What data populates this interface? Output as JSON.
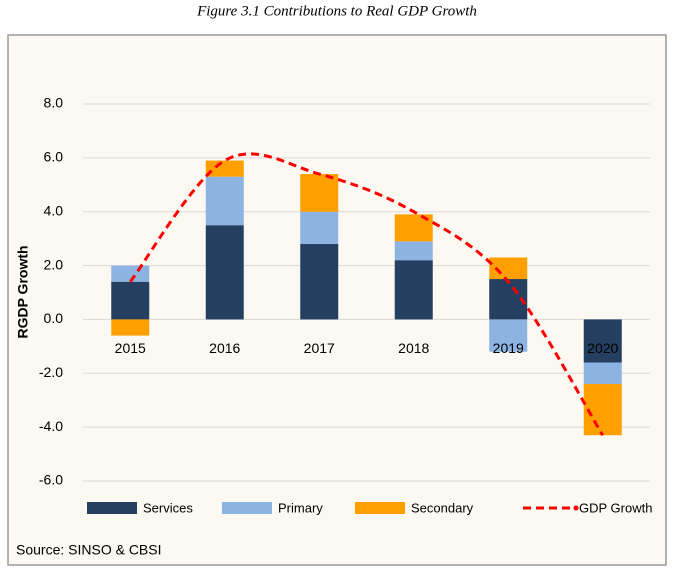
{
  "chart_data": {
    "type": "bar",
    "title": "Figure 3.1 Contributions to Real GDP Growth",
    "y_label": "RGDP Growth",
    "source": "Source: SINSO & CBSI",
    "categories": [
      "2015",
      "2016",
      "2017",
      "2018",
      "2019",
      "2020"
    ],
    "series": [
      {
        "name": "Services",
        "color": "#243f60",
        "values": [
          1.4,
          3.5,
          2.8,
          2.2,
          1.5,
          -1.6
        ]
      },
      {
        "name": "Primary",
        "color": "#8db3e2",
        "values": [
          0.6,
          1.8,
          1.2,
          0.7,
          -1.2,
          -0.8
        ]
      },
      {
        "name": "Secondary",
        "color": "#ffa000",
        "values": [
          -0.6,
          0.6,
          1.4,
          1.0,
          0.8,
          -1.9
        ]
      },
      {
        "name": "GDP Growth",
        "color": "#ff0000",
        "type": "line",
        "values": [
          1.4,
          5.9,
          5.4,
          4.0,
          1.4,
          -4.3
        ]
      }
    ],
    "ylim": [
      -6,
      8
    ],
    "yticks": [
      {
        "value": -6,
        "label": "-6.0"
      },
      {
        "value": -4,
        "label": "-4.0"
      },
      {
        "value": -2,
        "label": "-2.0"
      },
      {
        "value": 0,
        "label": "0.0"
      },
      {
        "value": 2,
        "label": "2.0"
      },
      {
        "value": 4,
        "label": "4.0"
      },
      {
        "value": 6,
        "label": "6.0"
      },
      {
        "value": 8,
        "label": "8.0"
      }
    ],
    "grid": true
  }
}
